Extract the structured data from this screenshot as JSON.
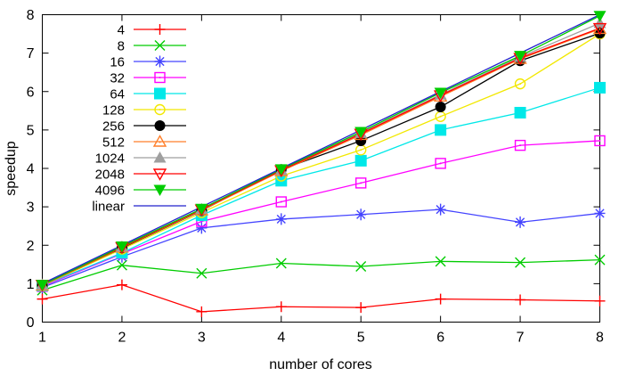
{
  "chart_data": {
    "type": "line",
    "title": "",
    "xlabel": "number of cores",
    "ylabel": "speedup",
    "xlim": [
      1,
      8
    ],
    "ylim": [
      0,
      8
    ],
    "xticks": [
      1,
      2,
      3,
      4,
      5,
      6,
      7,
      8
    ],
    "yticks": [
      0,
      1,
      2,
      3,
      4,
      5,
      6,
      7,
      8
    ],
    "grid": false,
    "legend_position": "top-left-inside",
    "x": [
      1,
      2,
      3,
      4,
      5,
      6,
      7,
      8
    ],
    "series": [
      {
        "name": "4",
        "color": "#ff0000",
        "marker": "plus",
        "values": [
          0.6,
          0.97,
          0.27,
          0.4,
          0.38,
          0.6,
          0.58,
          0.55
        ]
      },
      {
        "name": "8",
        "color": "#00cc00",
        "marker": "x",
        "values": [
          0.83,
          1.48,
          1.27,
          1.53,
          1.45,
          1.58,
          1.55,
          1.62
        ]
      },
      {
        "name": "16",
        "color": "#4444ff",
        "marker": "asterisk",
        "values": [
          0.9,
          1.7,
          2.45,
          2.68,
          2.8,
          2.93,
          2.6,
          2.83
        ]
      },
      {
        "name": "32",
        "color": "#ff00ff",
        "marker": "square-open",
        "values": [
          0.93,
          1.78,
          2.62,
          3.13,
          3.62,
          4.13,
          4.6,
          4.72
        ]
      },
      {
        "name": "64",
        "color": "#00e8e8",
        "marker": "square-filled",
        "values": [
          0.95,
          1.8,
          2.78,
          3.68,
          4.2,
          5.0,
          5.45,
          6.1
        ]
      },
      {
        "name": "128",
        "color": "#f2e800",
        "marker": "circle-open",
        "values": [
          0.95,
          1.9,
          2.85,
          3.8,
          4.48,
          5.35,
          6.2,
          7.5
        ]
      },
      {
        "name": "256",
        "color": "#000000",
        "marker": "circle-filled",
        "values": [
          0.96,
          1.93,
          2.9,
          3.97,
          4.72,
          5.6,
          6.8,
          7.52
        ]
      },
      {
        "name": "512",
        "color": "#ff7f2a",
        "marker": "triangle-up-open",
        "values": [
          0.95,
          1.94,
          2.91,
          3.93,
          4.87,
          5.87,
          6.85,
          7.63
        ]
      },
      {
        "name": "1024",
        "color": "#9f9f9f",
        "marker": "triangle-up-filled",
        "values": [
          0.97,
          1.96,
          2.94,
          3.96,
          4.92,
          5.92,
          6.9,
          7.78
        ]
      },
      {
        "name": "2048",
        "color": "#ff0000",
        "marker": "triangle-down-open",
        "values": [
          0.97,
          1.95,
          2.93,
          3.95,
          4.9,
          5.9,
          6.87,
          7.65
        ]
      },
      {
        "name": "4096",
        "color": "#00cc00",
        "marker": "triangle-down-filled",
        "values": [
          0.97,
          1.97,
          2.95,
          3.98,
          4.95,
          5.97,
          6.93,
          7.97
        ]
      },
      {
        "name": "linear",
        "color": "#2222cc",
        "marker": "none",
        "values": [
          1,
          2,
          3,
          4,
          5,
          6,
          7,
          8
        ]
      }
    ]
  }
}
